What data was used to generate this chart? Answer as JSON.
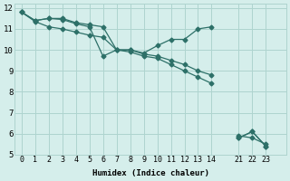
{
  "xlabel": "Humidex (Indice chaleur)",
  "bg_color": "#d5eeeb",
  "grid_color": "#aed4cf",
  "line_color": "#2d7068",
  "series": [
    {
      "x": [
        0,
        1,
        2,
        3,
        4,
        5,
        6,
        7,
        8,
        9,
        10,
        11,
        12,
        13,
        14,
        null,
        21,
        22,
        23
      ],
      "y": [
        11.8,
        11.4,
        11.5,
        11.5,
        11.3,
        11.2,
        11.1,
        10.0,
        10.0,
        9.8,
        9.7,
        9.5,
        9.3,
        9.0,
        8.8,
        null,
        5.8,
        6.1,
        5.4
      ]
    },
    {
      "x": [
        0,
        1,
        2,
        3,
        4,
        5,
        6,
        7,
        8,
        9,
        10,
        11,
        12,
        13,
        14,
        null,
        21,
        22,
        23
      ],
      "y": [
        11.8,
        11.4,
        11.5,
        11.45,
        11.25,
        11.1,
        9.7,
        10.0,
        10.0,
        9.85,
        10.2,
        10.5,
        10.5,
        11.0,
        11.1,
        null,
        5.8,
        6.1,
        5.4
      ]
    },
    {
      "x": [
        0,
        1,
        2,
        3,
        4,
        5,
        6,
        7,
        8,
        9,
        10,
        11,
        12,
        13,
        14,
        null,
        21,
        22,
        23
      ],
      "y": [
        11.8,
        11.35,
        11.1,
        11.0,
        10.85,
        10.7,
        10.6,
        10.0,
        9.9,
        9.7,
        9.6,
        9.3,
        9.0,
        8.7,
        8.4,
        null,
        5.9,
        5.8,
        5.5
      ]
    }
  ],
  "xtick_positions": [
    0,
    1,
    2,
    3,
    4,
    5,
    6,
    7,
    8,
    9,
    10,
    11,
    12,
    13,
    14,
    16,
    17,
    18
  ],
  "xtick_labels": [
    "0",
    "1",
    "2",
    "3",
    "4",
    "5",
    "6",
    "7",
    "8",
    "9",
    "10",
    "11",
    "12",
    "13",
    "14",
    "21",
    "22",
    "23"
  ],
  "ytick_positions": [
    5,
    6,
    7,
    8,
    9,
    10,
    11,
    12
  ],
  "xlim": [
    -0.5,
    19.5
  ],
  "ylim": [
    5,
    12.2
  ],
  "marker": "D",
  "markersize": 2.5,
  "linewidth": 0.9
}
